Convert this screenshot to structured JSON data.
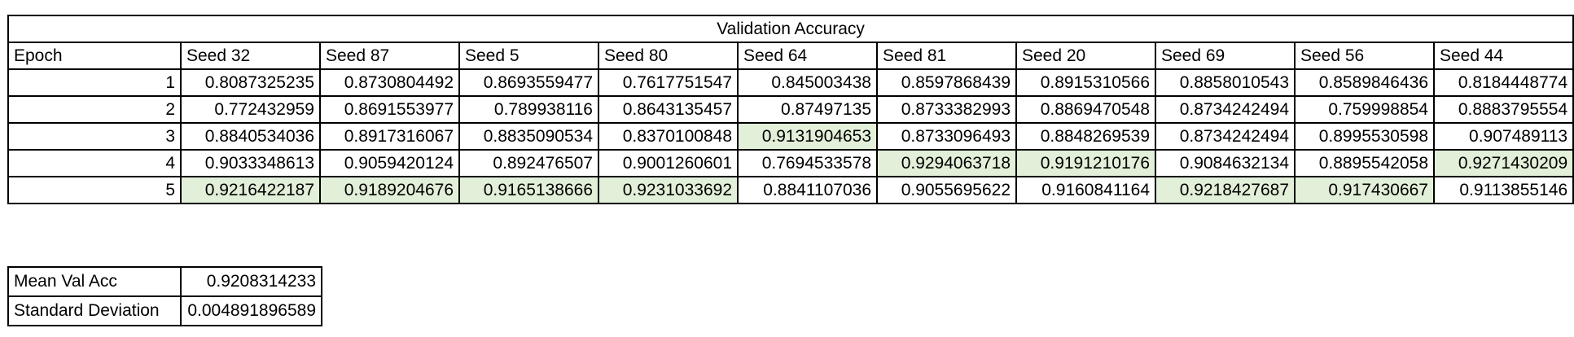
{
  "table": {
    "title": "Validation Accuracy",
    "epoch_header": "Epoch",
    "seeds": [
      "Seed 32",
      "Seed 87",
      "Seed 5",
      "Seed 80",
      "Seed 64",
      "Seed 81",
      "Seed 20",
      "Seed 69",
      "Seed 56",
      "Seed 44"
    ],
    "highlight_color": "#e2efd9",
    "rows": [
      {
        "epoch": "1",
        "values": [
          "0.8087325235",
          "0.8730804492",
          "0.8693559477",
          "0.7617751547",
          "0.845003438",
          "0.8597868439",
          "0.8915310566",
          "0.8858010543",
          "0.8589846436",
          "0.8184448774"
        ],
        "highlight": [
          false,
          false,
          false,
          false,
          false,
          false,
          false,
          false,
          false,
          false
        ]
      },
      {
        "epoch": "2",
        "values": [
          "0.772432959",
          "0.8691553977",
          "0.789938116",
          "0.8643135457",
          "0.87497135",
          "0.8733382993",
          "0.8869470548",
          "0.8734242494",
          "0.759998854",
          "0.8883795554"
        ],
        "highlight": [
          false,
          false,
          false,
          false,
          false,
          false,
          false,
          false,
          false,
          false
        ]
      },
      {
        "epoch": "3",
        "values": [
          "0.8840534036",
          "0.8917316067",
          "0.8835090534",
          "0.8370100848",
          "0.9131904653",
          "0.8733096493",
          "0.8848269539",
          "0.8734242494",
          "0.8995530598",
          "0.907489113"
        ],
        "highlight": [
          false,
          false,
          false,
          false,
          true,
          false,
          false,
          false,
          false,
          false
        ]
      },
      {
        "epoch": "4",
        "values": [
          "0.9033348613",
          "0.9059420124",
          "0.892476507",
          "0.9001260601",
          "0.7694533578",
          "0.9294063718",
          "0.9191210176",
          "0.9084632134",
          "0.8895542058",
          "0.9271430209"
        ],
        "highlight": [
          false,
          false,
          false,
          false,
          false,
          true,
          true,
          false,
          false,
          true
        ]
      },
      {
        "epoch": "5",
        "values": [
          "0.9216422187",
          "0.9189204676",
          "0.9165138666",
          "0.9231033692",
          "0.8841107036",
          "0.9055695622",
          "0.9160841164",
          "0.9218427687",
          "0.917430667",
          "0.9113855146"
        ],
        "highlight": [
          true,
          true,
          true,
          true,
          false,
          false,
          false,
          true,
          true,
          false
        ]
      }
    ]
  },
  "summary": {
    "mean_label": "Mean Val Acc",
    "mean_value": "0.9208314233",
    "std_label": "Standard Deviation",
    "std_value": "0.004891896589"
  }
}
